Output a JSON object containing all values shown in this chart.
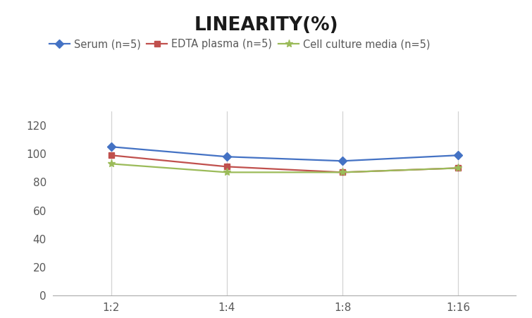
{
  "title": "LINEARITY(%)",
  "title_fontsize": 19,
  "title_fontweight": "bold",
  "x_labels": [
    "1:2",
    "1:4",
    "1:8",
    "1:16"
  ],
  "x_positions": [
    0,
    1,
    2,
    3
  ],
  "series": [
    {
      "label": "Serum (n=5)",
      "values": [
        105,
        98,
        95,
        99
      ],
      "color": "#4472C4",
      "marker": "D",
      "markersize": 6,
      "linewidth": 1.6
    },
    {
      "label": "EDTA plasma (n=5)",
      "values": [
        99,
        91,
        87,
        90
      ],
      "color": "#C0504D",
      "marker": "s",
      "markersize": 6,
      "linewidth": 1.6
    },
    {
      "label": "Cell culture media (n=5)",
      "values": [
        93,
        87,
        87,
        90
      ],
      "color": "#9BBB59",
      "marker": "*",
      "markersize": 8,
      "linewidth": 1.6
    }
  ],
  "ylim": [
    0,
    130
  ],
  "yticks": [
    0,
    20,
    40,
    60,
    80,
    100,
    120
  ],
  "grid_color": "#D3D3D3",
  "background_color": "#FFFFFF",
  "legend_fontsize": 10.5,
  "tick_fontsize": 11,
  "tick_color": "#595959"
}
